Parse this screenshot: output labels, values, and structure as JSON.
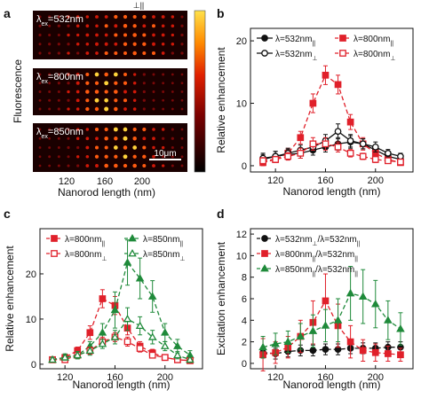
{
  "panel_labels": {
    "a": "a",
    "b": "b",
    "c": "c",
    "d": "d"
  },
  "colors": {
    "black": "#111111",
    "red": "#e0202a",
    "green": "#1f8a3a",
    "heat_bright": "#ffe14a",
    "heat_dark": "#1a0000"
  },
  "panel_a": {
    "ylabel": "Fluorescence",
    "xlabel": "Nanorod length (nm)",
    "xticks": [
      "120",
      "160",
      "200"
    ],
    "top_marker": "⊥||",
    "scale_bar": "10μm",
    "strips": [
      {
        "lam_prefix": "λ",
        "lam_sub": "ex",
        "lam_value": "=532nm"
      },
      {
        "lam_prefix": "λ",
        "lam_sub": "ex",
        "lam_value": "=800nm"
      },
      {
        "lam_prefix": "λ",
        "lam_sub": "ex",
        "lam_value": "=850nm"
      }
    ],
    "spot_brightness": [
      [
        0.3,
        0.3,
        0.35,
        0.4,
        0.45,
        0.55,
        0.6,
        0.65,
        0.7,
        0.8,
        0.85,
        0.75,
        0.65,
        0.55,
        0.45,
        0.35
      ],
      [
        0.2,
        0.25,
        0.3,
        0.4,
        0.6,
        0.8,
        0.95,
        1.0,
        0.9,
        0.7,
        0.5,
        0.35,
        0.25,
        0.2,
        0.15,
        0.15
      ],
      [
        0.15,
        0.2,
        0.25,
        0.3,
        0.4,
        0.55,
        0.7,
        0.85,
        0.95,
        1.0,
        0.9,
        0.75,
        0.55,
        0.4,
        0.3,
        0.2
      ]
    ]
  },
  "chart_data": [
    {
      "id": "b",
      "type": "line",
      "xlabel": "Nanorod length (nm)",
      "ylabel": "Relative enhancement",
      "xlim": [
        100,
        230
      ],
      "ylim": [
        -1,
        22
      ],
      "xticks": [
        120,
        160,
        200
      ],
      "yticks": [
        0,
        10,
        20
      ],
      "legend": [
        {
          "lam": "λ=532nm",
          "pol": "||",
          "series": 0
        },
        {
          "lam": "λ=800nm",
          "pol": "||",
          "series": 1
        },
        {
          "lam": "λ=532nm",
          "pol": "⊥",
          "series": 2
        },
        {
          "lam": "λ=800nm",
          "pol": "⊥",
          "series": 3
        }
      ],
      "series": [
        {
          "color": "#111111",
          "marker": "circle",
          "filled": true,
          "dash": false,
          "x": [
            110,
            120,
            130,
            140,
            150,
            160,
            170,
            180,
            190,
            200,
            210,
            220
          ],
          "y": [
            1.0,
            1.5,
            1.8,
            2.0,
            2.5,
            3.0,
            3.5,
            3.8,
            3.5,
            2.5,
            1.5,
            1.0
          ],
          "err": [
            0.8,
            0.8,
            0.8,
            0.8,
            0.8,
            0.8,
            1.0,
            1.0,
            0.8,
            0.8,
            0.6,
            0.5
          ]
        },
        {
          "color": "#e0202a",
          "marker": "square",
          "filled": true,
          "dash": true,
          "x": [
            110,
            120,
            130,
            140,
            150,
            160,
            170,
            180,
            190,
            200,
            210,
            220
          ],
          "y": [
            0.5,
            1.0,
            2.0,
            4.5,
            10.0,
            14.5,
            13.0,
            7.0,
            3.5,
            2.0,
            1.0,
            0.5
          ],
          "err": [
            0.5,
            0.5,
            0.8,
            1.0,
            1.5,
            1.5,
            1.5,
            1.2,
            1.0,
            0.6,
            0.5,
            0.4
          ]
        },
        {
          "color": "#111111",
          "marker": "circle",
          "filled": false,
          "dash": false,
          "x": [
            110,
            120,
            130,
            140,
            150,
            160,
            170,
            180,
            190,
            200,
            210,
            220
          ],
          "y": [
            1.2,
            1.5,
            2.0,
            2.5,
            3.0,
            4.0,
            5.5,
            4.0,
            3.5,
            3.0,
            2.0,
            1.5
          ],
          "err": [
            0.8,
            0.8,
            0.8,
            0.8,
            0.8,
            1.0,
            1.2,
            1.0,
            0.8,
            0.8,
            0.6,
            0.5
          ]
        },
        {
          "color": "#e0202a",
          "marker": "square",
          "filled": false,
          "dash": true,
          "x": [
            110,
            120,
            130,
            140,
            150,
            160,
            170,
            180,
            190,
            200,
            210,
            220
          ],
          "y": [
            0.8,
            1.0,
            1.5,
            2.0,
            3.5,
            3.5,
            3.0,
            2.0,
            1.5,
            1.0,
            0.8,
            0.6
          ],
          "err": [
            0.5,
            0.5,
            0.6,
            0.8,
            1.0,
            1.0,
            0.8,
            0.6,
            0.5,
            0.5,
            0.4,
            0.4
          ]
        }
      ]
    },
    {
      "id": "c",
      "type": "line",
      "xlabel": "Nanorod length (nm)",
      "ylabel": "Relative enhancement",
      "xlim": [
        100,
        230
      ],
      "ylim": [
        -1,
        30
      ],
      "xticks": [
        120,
        160,
        200
      ],
      "yticks": [
        0,
        10,
        20
      ],
      "legend": [
        {
          "lam": "λ=800nm",
          "pol": "||",
          "series": 0
        },
        {
          "lam": "λ=850nm",
          "pol": "||",
          "series": 1
        },
        {
          "lam": "λ=800nm",
          "pol": "⊥",
          "series": 2
        },
        {
          "lam": "λ=850nm",
          "pol": "⊥",
          "series": 3
        }
      ],
      "series": [
        {
          "color": "#e0202a",
          "marker": "square",
          "filled": true,
          "dash": true,
          "x": [
            110,
            120,
            130,
            140,
            150,
            160,
            170,
            180,
            190,
            200,
            210,
            220
          ],
          "y": [
            1.0,
            1.5,
            3.0,
            7.0,
            14.5,
            13.0,
            8.0,
            4.0,
            2.5,
            1.5,
            1.0,
            0.8
          ],
          "err": [
            0.5,
            0.5,
            0.8,
            1.5,
            2.0,
            2.0,
            1.5,
            1.0,
            0.8,
            0.6,
            0.5,
            0.4
          ]
        },
        {
          "color": "#1f8a3a",
          "marker": "triangle",
          "filled": true,
          "dash": true,
          "x": [
            110,
            120,
            130,
            140,
            150,
            160,
            170,
            180,
            190,
            200,
            210,
            220
          ],
          "y": [
            1.0,
            1.5,
            2.0,
            4.0,
            7.0,
            12.0,
            22.5,
            19.0,
            15.0,
            7.0,
            4.0,
            2.0
          ],
          "err": [
            0.6,
            0.8,
            0.8,
            1.0,
            2.0,
            4.0,
            5.0,
            4.5,
            3.5,
            2.0,
            1.5,
            1.0
          ]
        },
        {
          "color": "#e0202a",
          "marker": "square",
          "filled": false,
          "dash": true,
          "x": [
            110,
            120,
            130,
            140,
            150,
            160,
            170,
            180,
            190,
            200,
            210,
            220
          ],
          "y": [
            1.0,
            1.0,
            2.0,
            3.0,
            5.0,
            6.0,
            5.0,
            3.5,
            2.0,
            1.5,
            1.0,
            0.8
          ],
          "err": [
            0.5,
            0.5,
            0.6,
            0.8,
            1.0,
            1.0,
            1.0,
            0.8,
            0.6,
            0.5,
            0.4,
            0.4
          ]
        },
        {
          "color": "#1f8a3a",
          "marker": "triangle",
          "filled": false,
          "dash": true,
          "x": [
            110,
            120,
            130,
            140,
            150,
            160,
            170,
            180,
            190,
            200,
            210,
            220
          ],
          "y": [
            1.0,
            1.5,
            2.0,
            3.0,
            4.5,
            6.0,
            10.0,
            8.5,
            6.0,
            4.0,
            2.0,
            1.0
          ],
          "err": [
            0.5,
            0.6,
            0.8,
            1.0,
            1.0,
            1.5,
            2.5,
            2.0,
            1.5,
            1.0,
            0.8,
            0.6
          ]
        }
      ]
    },
    {
      "id": "d",
      "type": "line",
      "xlabel": "Nanorod length (nm)",
      "ylabel": "Excitation enhancement",
      "xlim": [
        100,
        230
      ],
      "ylim": [
        -0.5,
        12.5
      ],
      "xticks": [
        120,
        160,
        200
      ],
      "yticks": [
        0,
        2,
        4,
        6,
        8,
        10,
        12
      ],
      "legend": [
        {
          "lam": "λ=532nm",
          "pol": "⊥",
          "tail": "/λ=532nm",
          "tail_pol": "||",
          "series": 0
        },
        {
          "lam": "λ=800nm",
          "pol": "||",
          "tail": "/λ=532nm",
          "tail_pol": "||",
          "series": 1
        },
        {
          "lam": "λ=850nm",
          "pol": "||",
          "tail": "/λ=532nm",
          "tail_pol": "||",
          "series": 2
        }
      ],
      "series": [
        {
          "color": "#111111",
          "marker": "circle",
          "filled": true,
          "dash": true,
          "x": [
            110,
            120,
            130,
            140,
            150,
            160,
            170,
            180,
            190,
            200,
            210,
            220
          ],
          "y": [
            1.0,
            0.9,
            1.1,
            1.2,
            1.2,
            1.3,
            1.3,
            1.4,
            1.4,
            1.4,
            1.5,
            1.5
          ],
          "err": [
            0.5,
            0.5,
            0.5,
            0.5,
            0.5,
            0.5,
            0.5,
            0.5,
            0.5,
            0.5,
            0.5,
            0.5
          ]
        },
        {
          "color": "#e0202a",
          "marker": "square",
          "filled": true,
          "dash": true,
          "x": [
            110,
            120,
            130,
            140,
            150,
            160,
            170,
            180,
            190,
            200,
            210,
            220
          ],
          "y": [
            0.8,
            1.0,
            1.5,
            2.5,
            3.8,
            5.8,
            3.5,
            2.0,
            1.2,
            1.0,
            0.9,
            0.8
          ],
          "err": [
            1.5,
            1.0,
            1.0,
            1.5,
            2.0,
            2.5,
            2.0,
            1.5,
            1.0,
            0.8,
            0.7,
            0.6
          ]
        },
        {
          "color": "#1f8a3a",
          "marker": "triangle",
          "filled": true,
          "dash": true,
          "x": [
            110,
            120,
            130,
            140,
            150,
            160,
            170,
            180,
            190,
            200,
            210,
            220
          ],
          "y": [
            1.5,
            1.8,
            2.0,
            2.5,
            3.0,
            3.5,
            4.0,
            6.5,
            6.2,
            5.5,
            4.0,
            3.2
          ],
          "err": [
            1.0,
            1.0,
            1.0,
            1.2,
            1.5,
            1.5,
            2.0,
            2.5,
            2.5,
            2.2,
            1.8,
            1.5
          ]
        }
      ]
    }
  ]
}
